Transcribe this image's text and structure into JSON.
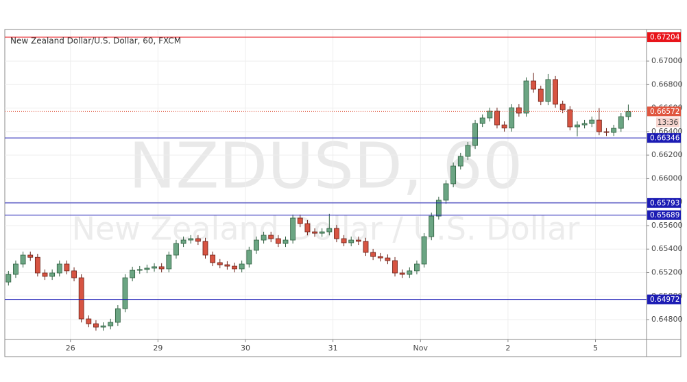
{
  "chart_data": {
    "type": "candlestick",
    "title": "New Zealand Dollar/U.S. Dollar, 60, FXCM",
    "watermark": "NZDUSD, 60",
    "watermark_subtitle": "New Zealand Dollar / U.S. Dollar",
    "up_color": "#6ba583",
    "down_color": "#d75442",
    "x": [
      0,
      2,
      4,
      6,
      8,
      10,
      12,
      14,
      16,
      18,
      20,
      22,
      24,
      26,
      28,
      30,
      32,
      34,
      36,
      38,
      40,
      42,
      44,
      46,
      48,
      50,
      52,
      54,
      56,
      58,
      60,
      62,
      64,
      66,
      68,
      70,
      72,
      74,
      76,
      78,
      80,
      82,
      84,
      86,
      88,
      90,
      92,
      94,
      96,
      98,
      100,
      102,
      104,
      106,
      108,
      110,
      112,
      114,
      116,
      118,
      120,
      122,
      124,
      126,
      128,
      130,
      132,
      134,
      136,
      138,
      140,
      142,
      144,
      146,
      148,
      150,
      152,
      154,
      156,
      158,
      160,
      162,
      164,
      166,
      168,
      170
    ],
    "open": [
      0.6512,
      0.65185,
      0.65273,
      0.65349,
      0.6533,
      0.65197,
      0.65168,
      0.65197,
      0.65273,
      0.65215,
      0.65156,
      0.64806,
      0.64765,
      0.64736,
      0.64747,
      0.64777,
      0.64893,
      0.65156,
      0.6522,
      0.65226,
      0.65238,
      0.6525,
      0.65232,
      0.65349,
      0.65448,
      0.65477,
      0.65489,
      0.65466,
      0.65349,
      0.65285,
      0.65267,
      0.65255,
      0.65232,
      0.65273,
      0.6539,
      0.65477,
      0.65518,
      0.65489,
      0.65448,
      0.65477,
      0.65664,
      0.65617,
      0.65547,
      0.65535,
      0.65547,
      0.65576,
      0.65489,
      0.65454,
      0.65477,
      0.65466,
      0.65372,
      0.65337,
      0.65325,
      0.65302,
      0.65197,
      0.65185,
      0.65215,
      0.65273,
      0.65506,
      0.65681,
      0.65816,
      0.65956,
      0.66107,
      0.66189,
      0.66282,
      0.66469,
      0.66516,
      0.66574,
      0.66457,
      0.6643,
      0.66603,
      0.66557,
      0.66831,
      0.66761,
      0.66656,
      0.66843,
      0.66633,
      0.66586,
      0.6644,
      0.66457,
      0.66469,
      0.66498,
      0.66399,
      0.66393,
      0.66428,
      0.66527
    ],
    "high": [
      0.65215,
      0.65303,
      0.65379,
      0.65379,
      0.6536,
      0.65227,
      0.65227,
      0.65303,
      0.65303,
      0.65245,
      0.65186,
      0.64836,
      0.64795,
      0.64777,
      0.64807,
      0.64923,
      0.65186,
      0.6525,
      0.65256,
      0.65268,
      0.6528,
      0.6528,
      0.65379,
      0.65478,
      0.65507,
      0.65519,
      0.65519,
      0.65496,
      0.65379,
      0.65315,
      0.65297,
      0.65285,
      0.65303,
      0.6542,
      0.65507,
      0.65548,
      0.65548,
      0.65519,
      0.65507,
      0.65694,
      0.65694,
      0.65647,
      0.65577,
      0.65577,
      0.657,
      0.65606,
      0.65519,
      0.65507,
      0.65507,
      0.65496,
      0.65402,
      0.65367,
      0.65355,
      0.65332,
      0.65227,
      0.65245,
      0.65303,
      0.65536,
      0.65711,
      0.65846,
      0.65986,
      0.66137,
      0.66219,
      0.66312,
      0.66499,
      0.66546,
      0.66604,
      0.66604,
      0.66487,
      0.66633,
      0.66633,
      0.66861,
      0.669,
      0.66791,
      0.6689,
      0.66873,
      0.66663,
      0.66616,
      0.66487,
      0.66499,
      0.66528,
      0.666,
      0.66429,
      0.66458,
      0.66557,
      0.6663
    ],
    "low": [
      0.6509,
      0.65155,
      0.65243,
      0.653,
      0.65167,
      0.65138,
      0.65138,
      0.65167,
      0.65185,
      0.65126,
      0.64776,
      0.64735,
      0.64706,
      0.64706,
      0.64717,
      0.64747,
      0.64863,
      0.65126,
      0.6519,
      0.65196,
      0.65208,
      0.65202,
      0.65202,
      0.65319,
      0.65418,
      0.65447,
      0.65436,
      0.65319,
      0.65255,
      0.65237,
      0.65225,
      0.65202,
      0.65202,
      0.65243,
      0.6536,
      0.65447,
      0.65459,
      0.65418,
      0.65418,
      0.65447,
      0.65587,
      0.65517,
      0.65505,
      0.65505,
      0.65517,
      0.65459,
      0.65424,
      0.65424,
      0.65436,
      0.65342,
      0.65307,
      0.65295,
      0.65272,
      0.65167,
      0.65155,
      0.65155,
      0.65185,
      0.65243,
      0.65476,
      0.65651,
      0.65786,
      0.65926,
      0.66077,
      0.66159,
      0.66252,
      0.66439,
      0.66486,
      0.66427,
      0.664,
      0.664,
      0.66527,
      0.66527,
      0.66731,
      0.66626,
      0.66626,
      0.66603,
      0.66556,
      0.6641,
      0.6636,
      0.66427,
      0.66439,
      0.66369,
      0.66363,
      0.66363,
      0.66398,
      0.66497
    ],
    "close": [
      0.65185,
      0.65273,
      0.65349,
      0.6533,
      0.65197,
      0.65168,
      0.65197,
      0.65273,
      0.65215,
      0.65156,
      0.64806,
      0.64765,
      0.64736,
      0.64747,
      0.64777,
      0.64893,
      0.65156,
      0.6522,
      0.65226,
      0.65238,
      0.6525,
      0.65232,
      0.65349,
      0.65448,
      0.65477,
      0.65489,
      0.65466,
      0.65349,
      0.65285,
      0.65267,
      0.65255,
      0.65232,
      0.65273,
      0.6539,
      0.65477,
      0.65518,
      0.65489,
      0.65448,
      0.65477,
      0.65664,
      0.65617,
      0.65547,
      0.65535,
      0.65547,
      0.65576,
      0.65489,
      0.65454,
      0.65477,
      0.65466,
      0.65372,
      0.65337,
      0.65325,
      0.65302,
      0.65197,
      0.65185,
      0.65215,
      0.65273,
      0.65506,
      0.65681,
      0.65816,
      0.65956,
      0.66107,
      0.66189,
      0.66282,
      0.66469,
      0.66516,
      0.66574,
      0.66457,
      0.6643,
      0.66603,
      0.66557,
      0.66831,
      0.66761,
      0.66656,
      0.66843,
      0.66633,
      0.66586,
      0.6644,
      0.66457,
      0.66469,
      0.66498,
      0.66399,
      0.66393,
      0.66428,
      0.66527,
      0.66572
    ],
    "xlim": [
      -1,
      175
    ],
    "xticks": [
      {
        "value": 17,
        "label": "26"
      },
      {
        "value": 41,
        "label": "29"
      },
      {
        "value": 65,
        "label": "30"
      },
      {
        "value": 89,
        "label": "31"
      },
      {
        "value": 113,
        "label": "Nov"
      },
      {
        "value": 137,
        "label": "2"
      },
      {
        "value": 161,
        "label": "5"
      }
    ],
    "ylim": [
      0.64631,
      0.67263
    ],
    "yticks": [
      {
        "value": 0.648,
        "label": "0.64800"
      },
      {
        "value": 0.65,
        "label": "0.65000"
      },
      {
        "value": 0.652,
        "label": "0.65200"
      },
      {
        "value": 0.654,
        "label": "0.65400"
      },
      {
        "value": 0.656,
        "label": "0.65600"
      },
      {
        "value": 0.658,
        "label": "0.65800"
      },
      {
        "value": 0.66,
        "label": "0.66000"
      },
      {
        "value": 0.662,
        "label": "0.66200"
      },
      {
        "value": 0.664,
        "label": "0.66400"
      },
      {
        "value": 0.666,
        "label": "0.66600"
      },
      {
        "value": 0.668,
        "label": "0.66800"
      },
      {
        "value": 0.67,
        "label": "0.67000"
      }
    ],
    "grid": true,
    "levels": [
      {
        "value": 0.67204,
        "color": "#e8141a"
      },
      {
        "value": 0.66346,
        "color": "#1c1cb4"
      },
      {
        "value": 0.65793,
        "color": "#1c1cb4"
      },
      {
        "value": 0.65689,
        "color": "#1c1cb4"
      },
      {
        "value": 0.64972,
        "color": "#1c1cb4"
      }
    ],
    "current": {
      "value": 0.66572,
      "countdown": "13:36",
      "color": "#e0563f"
    }
  }
}
